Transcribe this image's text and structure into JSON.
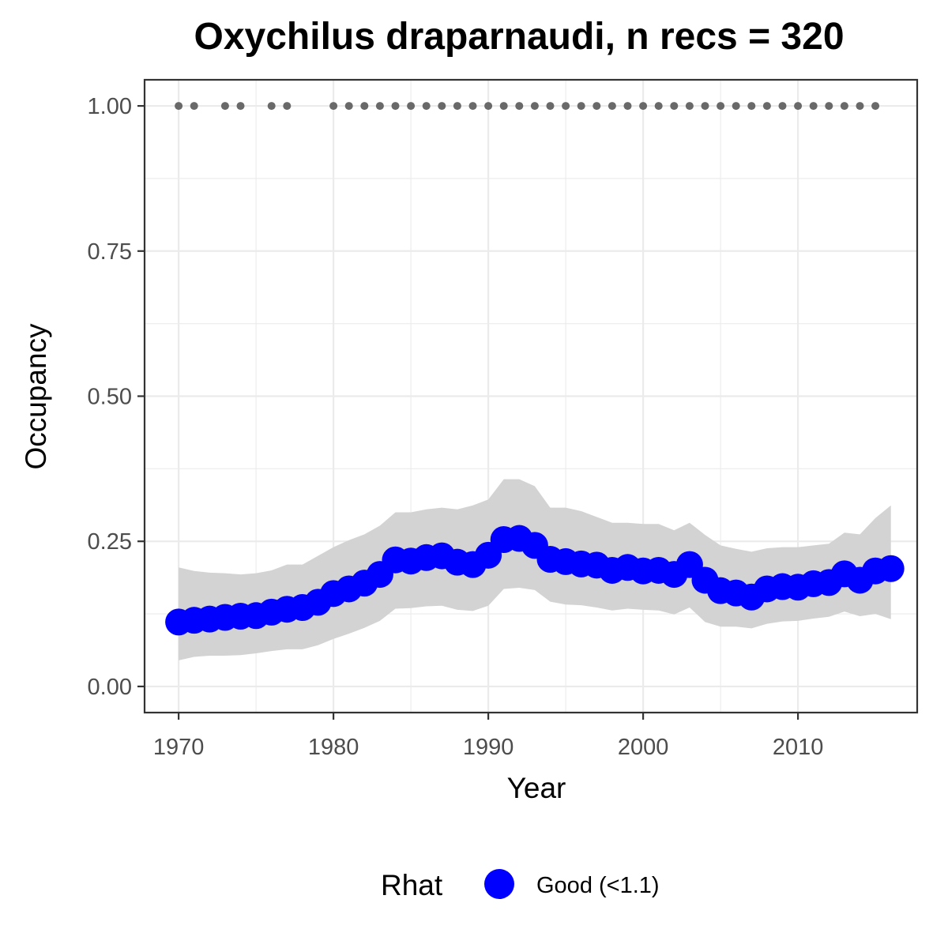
{
  "chart_data": {
    "type": "line",
    "title": "Oxychilus draparnaudi, n recs = 320",
    "xlabel": "Year",
    "ylabel": "Occupancy",
    "xlim": [
      1967.8,
      2017.7
    ],
    "ylim": [
      -0.045,
      1.045
    ],
    "x_ticks": [
      1970,
      1980,
      1990,
      2000,
      2010
    ],
    "y_ticks": [
      0.0,
      0.25,
      0.5,
      0.75,
      1.0
    ],
    "x_tick_labels": [
      "1970",
      "1980",
      "1990",
      "2000",
      "2010"
    ],
    "y_tick_labels": [
      "0.00",
      "0.25",
      "0.50",
      "0.75",
      "1.00"
    ],
    "grid": true,
    "legend": {
      "title": "Rhat",
      "position": "bottom",
      "entries": [
        {
          "label": "Good (<1.1)",
          "color": "#0000ff"
        }
      ]
    },
    "series": [
      {
        "name": "Good (<1.1)",
        "color": "#0000ff",
        "x": [
          1970,
          1971,
          1972,
          1973,
          1974,
          1975,
          1976,
          1977,
          1978,
          1979,
          1980,
          1981,
          1982,
          1983,
          1984,
          1985,
          1986,
          1987,
          1988,
          1989,
          1990,
          1991,
          1992,
          1993,
          1994,
          1995,
          1996,
          1997,
          1998,
          1999,
          2000,
          2001,
          2002,
          2003,
          2004,
          2005,
          2006,
          2007,
          2008,
          2009,
          2010,
          2011,
          2012,
          2013,
          2014,
          2015,
          2016
        ],
        "y": [
          0.111,
          0.114,
          0.116,
          0.119,
          0.121,
          0.122,
          0.128,
          0.133,
          0.136,
          0.145,
          0.16,
          0.168,
          0.178,
          0.193,
          0.218,
          0.216,
          0.222,
          0.225,
          0.214,
          0.21,
          0.226,
          0.253,
          0.255,
          0.243,
          0.219,
          0.215,
          0.211,
          0.209,
          0.2,
          0.205,
          0.199,
          0.2,
          0.193,
          0.21,
          0.183,
          0.165,
          0.161,
          0.154,
          0.168,
          0.172,
          0.171,
          0.177,
          0.179,
          0.194,
          0.183,
          0.199,
          0.203
        ],
        "lower": [
          0.045,
          0.051,
          0.053,
          0.053,
          0.054,
          0.057,
          0.061,
          0.064,
          0.064,
          0.071,
          0.082,
          0.091,
          0.101,
          0.113,
          0.134,
          0.135,
          0.138,
          0.139,
          0.132,
          0.13,
          0.139,
          0.168,
          0.17,
          0.166,
          0.146,
          0.141,
          0.14,
          0.136,
          0.131,
          0.134,
          0.132,
          0.131,
          0.124,
          0.136,
          0.111,
          0.103,
          0.103,
          0.1,
          0.108,
          0.112,
          0.113,
          0.117,
          0.12,
          0.129,
          0.121,
          0.125,
          0.116
        ],
        "upper": [
          0.205,
          0.199,
          0.196,
          0.195,
          0.193,
          0.195,
          0.2,
          0.21,
          0.21,
          0.225,
          0.24,
          0.252,
          0.262,
          0.277,
          0.3,
          0.3,
          0.305,
          0.308,
          0.305,
          0.312,
          0.322,
          0.357,
          0.357,
          0.345,
          0.308,
          0.308,
          0.302,
          0.292,
          0.282,
          0.282,
          0.28,
          0.28,
          0.269,
          0.282,
          0.261,
          0.243,
          0.237,
          0.232,
          0.238,
          0.24,
          0.24,
          0.243,
          0.246,
          0.265,
          0.262,
          0.29,
          0.312
        ]
      },
      {
        "name": "",
        "color": "#696969",
        "marker": "small",
        "x": [
          1970,
          1971,
          1973,
          1974,
          1976,
          1977,
          1980,
          1981,
          1982,
          1983,
          1984,
          1985,
          1986,
          1987,
          1988,
          1989,
          1990,
          1991,
          1992,
          1993,
          1994,
          1995,
          1996,
          1997,
          1998,
          1999,
          2000,
          2001,
          2002,
          2003,
          2004,
          2005,
          2006,
          2007,
          2008,
          2009,
          2010,
          2011,
          2012,
          2013,
          2014,
          2015
        ],
        "y": [
          1,
          1,
          1,
          1,
          1,
          1,
          1,
          1,
          1,
          1,
          1,
          1,
          1,
          1,
          1,
          1,
          1,
          1,
          1,
          1,
          1,
          1,
          1,
          1,
          1,
          1,
          1,
          1,
          1,
          1,
          1,
          1,
          1,
          1,
          1,
          1,
          1,
          1,
          1,
          1,
          1,
          1
        ]
      }
    ]
  }
}
